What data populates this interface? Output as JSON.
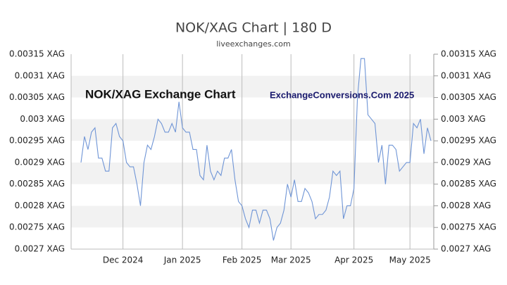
{
  "chart_data": {
    "type": "line",
    "title": "NOK/XAG Chart | 180 D",
    "subtitle": "liveexchanges.com",
    "annotations": [
      "NOK/XAG Exchange Chart",
      "ExchangeConversions.Com 2025"
    ],
    "color": "#6f95d6",
    "grid": true,
    "bands": true,
    "categories": [
      null,
      null,
      null,
      null,
      null,
      null,
      null,
      null,
      null,
      null,
      null,
      null,
      "Dec 2024",
      null,
      null,
      null,
      null,
      null,
      null,
      null,
      null,
      null,
      null,
      null,
      null,
      null,
      null,
      null,
      null,
      "Jan 2025",
      null,
      null,
      null,
      null,
      null,
      null,
      null,
      null,
      null,
      null,
      null,
      null,
      null,
      null,
      null,
      null,
      "Feb 2025",
      null,
      null,
      null,
      null,
      null,
      null,
      null,
      null,
      null,
      null,
      null,
      null,
      null,
      "Mar 2025",
      null,
      null,
      null,
      null,
      null,
      null,
      null,
      null,
      null,
      null,
      null,
      null,
      null,
      null,
      null,
      null,
      null,
      "Apr 2025",
      null,
      null,
      null,
      null,
      null,
      null,
      null,
      null,
      null,
      null,
      null,
      null,
      null,
      null,
      null,
      "May 2025",
      null,
      null,
      null,
      null,
      null,
      null
    ],
    "values": [
      0.0029,
      0.00296,
      0.00293,
      0.00297,
      0.00298,
      0.00291,
      0.00291,
      0.00288,
      0.00288,
      0.00298,
      0.00299,
      0.00296,
      0.00295,
      0.0029,
      0.00289,
      0.00289,
      0.00285,
      0.0028,
      0.0029,
      0.00294,
      0.00293,
      0.00296,
      0.003,
      0.00299,
      0.00297,
      0.00297,
      0.00299,
      0.00297,
      0.00304,
      0.00298,
      0.00297,
      0.00297,
      0.00293,
      0.00293,
      0.00287,
      0.00286,
      0.00294,
      0.00288,
      0.00286,
      0.00288,
      0.00287,
      0.00291,
      0.00291,
      0.00293,
      0.00286,
      0.00281,
      0.0028,
      0.00277,
      0.00275,
      0.00279,
      0.00279,
      0.00276,
      0.00279,
      0.00279,
      0.00277,
      0.00272,
      0.00275,
      0.00276,
      0.00279,
      0.00285,
      0.00282,
      0.00286,
      0.00281,
      0.00281,
      0.00284,
      0.00283,
      0.00281,
      0.00277,
      0.00278,
      0.00278,
      0.00279,
      0.00282,
      0.00288,
      0.00287,
      0.00288,
      0.00277,
      0.0028,
      0.0028,
      0.00284,
      0.00305,
      0.00314,
      0.00314,
      0.00301,
      0.003,
      0.00299,
      0.0029,
      0.00294,
      0.00285,
      0.00294,
      0.00294,
      0.00293,
      0.00288,
      0.00289,
      0.0029,
      0.0029,
      0.00299,
      0.00298,
      0.003,
      0.00292,
      0.00298,
      0.00295
    ],
    "ylim": [
      0.0027,
      0.00315
    ],
    "yticks": [
      {
        "value": 0.0027,
        "label": "0.0027 XAG"
      },
      {
        "value": 0.00275,
        "label": "0.00275 XAG"
      },
      {
        "value": 0.0028,
        "label": "0.0028 XAG"
      },
      {
        "value": 0.00285,
        "label": "0.00285 XAG"
      },
      {
        "value": 0.0029,
        "label": "0.0029 XAG"
      },
      {
        "value": 0.00295,
        "label": "0.00295 XAG"
      },
      {
        "value": 0.003,
        "label": "0.003 XAG"
      },
      {
        "value": 0.00305,
        "label": "0.00305 XAG"
      },
      {
        "value": 0.0031,
        "label": "0.0031 XAG"
      },
      {
        "value": 0.00315,
        "label": "0.00315 XAG"
      }
    ]
  }
}
